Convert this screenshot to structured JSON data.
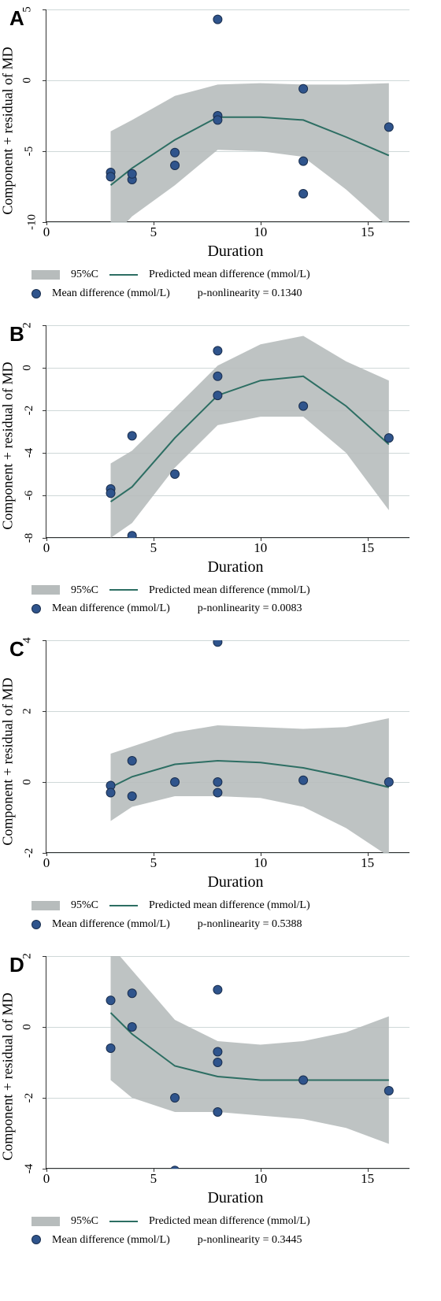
{
  "figure_width": 560,
  "figure_height": 1652,
  "line_color": "#2d6e63",
  "band_color": "#b7bcbc",
  "point_fill": "#2f548c",
  "point_stroke": "#1a2f4f",
  "grid_color": "#cfd8d8",
  "axis_color": "#333333",
  "background_color": "#ffffff",
  "point_radius": 5.5,
  "line_width": 2,
  "xlabel": "Duration",
  "ylabel": "Component + residual of MD",
  "xlim": [
    0,
    17
  ],
  "xticks": [
    0,
    5,
    10,
    15
  ],
  "legend": {
    "ci_label": "95%C",
    "predicted_label": "Predicted mean difference (mmol/L)",
    "md_label": "Mean difference (mmol/L)"
  },
  "panels": [
    {
      "letter": "A",
      "p_nonlinearity": "p-nonlinearity = 0.1340",
      "ylim": [
        -10,
        5
      ],
      "yticks": [
        -10,
        -5,
        0,
        5
      ],
      "line": [
        [
          3,
          -7.4
        ],
        [
          4,
          -6.2
        ],
        [
          6,
          -4.2
        ],
        [
          8,
          -2.6
        ],
        [
          10,
          -2.6
        ],
        [
          12,
          -2.8
        ],
        [
          14,
          -4.0
        ],
        [
          16,
          -5.3
        ]
      ],
      "band_upper": [
        [
          3,
          -3.6
        ],
        [
          4,
          -2.8
        ],
        [
          6,
          -1.1
        ],
        [
          8,
          -0.3
        ],
        [
          10,
          -0.2
        ],
        [
          12,
          -0.3
        ],
        [
          14,
          -0.3
        ],
        [
          16,
          -0.2
        ]
      ],
      "band_lower": [
        [
          3,
          -11.2
        ],
        [
          4,
          -9.6
        ],
        [
          6,
          -7.4
        ],
        [
          8,
          -4.9
        ],
        [
          10,
          -5.0
        ],
        [
          12,
          -5.4
        ],
        [
          14,
          -7.7
        ],
        [
          16,
          -10.4
        ]
      ],
      "points": [
        [
          3,
          -6.5
        ],
        [
          3,
          -6.8
        ],
        [
          4,
          -7.0
        ],
        [
          4,
          -6.6
        ],
        [
          6,
          -5.1
        ],
        [
          6,
          -6.0
        ],
        [
          8,
          4.3
        ],
        [
          8,
          -2.5
        ],
        [
          8,
          -2.8
        ],
        [
          12,
          -0.6
        ],
        [
          12,
          -5.7
        ],
        [
          12,
          -8.0
        ],
        [
          16,
          -3.3
        ]
      ]
    },
    {
      "letter": "B",
      "p_nonlinearity": "p-nonlinearity = 0.0083",
      "ylim": [
        -8,
        2
      ],
      "yticks": [
        -8,
        -6,
        -4,
        -2,
        0,
        2
      ],
      "line": [
        [
          3,
          -6.3
        ],
        [
          4,
          -5.6
        ],
        [
          6,
          -3.3
        ],
        [
          8,
          -1.3
        ],
        [
          10,
          -0.6
        ],
        [
          12,
          -0.4
        ],
        [
          14,
          -1.8
        ],
        [
          16,
          -3.6
        ]
      ],
      "band_upper": [
        [
          3,
          -4.5
        ],
        [
          4,
          -3.9
        ],
        [
          6,
          -1.9
        ],
        [
          8,
          0.1
        ],
        [
          10,
          1.1
        ],
        [
          12,
          1.5
        ],
        [
          14,
          0.3
        ],
        [
          16,
          -0.6
        ]
      ],
      "band_lower": [
        [
          3,
          -8.0
        ],
        [
          4,
          -7.3
        ],
        [
          6,
          -4.7
        ],
        [
          8,
          -2.7
        ],
        [
          10,
          -2.3
        ],
        [
          12,
          -2.3
        ],
        [
          14,
          -4.0
        ],
        [
          16,
          -6.7
        ]
      ],
      "points": [
        [
          3,
          -5.7
        ],
        [
          3,
          -5.9
        ],
        [
          4,
          -3.2
        ],
        [
          4,
          -7.9
        ],
        [
          6,
          -5.0
        ],
        [
          8,
          0.8
        ],
        [
          8,
          -0.4
        ],
        [
          8,
          -1.3
        ],
        [
          12,
          -1.8
        ],
        [
          16,
          -3.3
        ]
      ]
    },
    {
      "letter": "C",
      "p_nonlinearity": "p-nonlinearity = 0.5388",
      "ylim": [
        -2,
        4
      ],
      "yticks": [
        -2,
        0,
        2,
        4
      ],
      "line": [
        [
          3,
          -0.15
        ],
        [
          4,
          0.15
        ],
        [
          6,
          0.5
        ],
        [
          8,
          0.6
        ],
        [
          10,
          0.55
        ],
        [
          12,
          0.4
        ],
        [
          14,
          0.15
        ],
        [
          16,
          -0.15
        ]
      ],
      "band_upper": [
        [
          3,
          0.8
        ],
        [
          4,
          1.0
        ],
        [
          6,
          1.4
        ],
        [
          8,
          1.6
        ],
        [
          10,
          1.55
        ],
        [
          12,
          1.5
        ],
        [
          14,
          1.55
        ],
        [
          16,
          1.8
        ]
      ],
      "band_lower": [
        [
          3,
          -1.1
        ],
        [
          4,
          -0.7
        ],
        [
          6,
          -0.4
        ],
        [
          8,
          -0.4
        ],
        [
          10,
          -0.45
        ],
        [
          12,
          -0.7
        ],
        [
          14,
          -1.3
        ],
        [
          16,
          -2.1
        ]
      ],
      "points": [
        [
          3,
          -0.1
        ],
        [
          3,
          -0.3
        ],
        [
          4,
          0.6
        ],
        [
          4,
          -0.4
        ],
        [
          6,
          0.0
        ],
        [
          8,
          3.95
        ],
        [
          8,
          0.0
        ],
        [
          8,
          -0.3
        ],
        [
          12,
          0.05
        ],
        [
          16,
          0.0
        ]
      ]
    },
    {
      "letter": "D",
      "p_nonlinearity": "p-nonlinearity = 0.3445",
      "ylim": [
        -4,
        2
      ],
      "yticks": [
        -4,
        -2,
        0,
        2
      ],
      "line": [
        [
          3,
          0.4
        ],
        [
          4,
          -0.2
        ],
        [
          6,
          -1.1
        ],
        [
          8,
          -1.4
        ],
        [
          10,
          -1.5
        ],
        [
          12,
          -1.5
        ],
        [
          14,
          -1.5
        ],
        [
          16,
          -1.5
        ]
      ],
      "band_upper": [
        [
          3,
          2.3
        ],
        [
          4,
          1.6
        ],
        [
          6,
          0.2
        ],
        [
          8,
          -0.4
        ],
        [
          10,
          -0.5
        ],
        [
          12,
          -0.4
        ],
        [
          14,
          -0.15
        ],
        [
          16,
          0.3
        ]
      ],
      "band_lower": [
        [
          3,
          -1.5
        ],
        [
          4,
          -2.0
        ],
        [
          6,
          -2.4
        ],
        [
          8,
          -2.4
        ],
        [
          10,
          -2.5
        ],
        [
          12,
          -2.6
        ],
        [
          14,
          -2.85
        ],
        [
          16,
          -3.3
        ]
      ],
      "points": [
        [
          3,
          0.75
        ],
        [
          3,
          -0.6
        ],
        [
          4,
          0.95
        ],
        [
          4,
          0.0
        ],
        [
          6,
          -2.0
        ],
        [
          6,
          -4.05
        ],
        [
          8,
          1.05
        ],
        [
          8,
          -0.7
        ],
        [
          8,
          -1.0
        ],
        [
          8,
          -2.4
        ],
        [
          12,
          -1.5
        ],
        [
          16,
          -1.8
        ]
      ]
    }
  ]
}
